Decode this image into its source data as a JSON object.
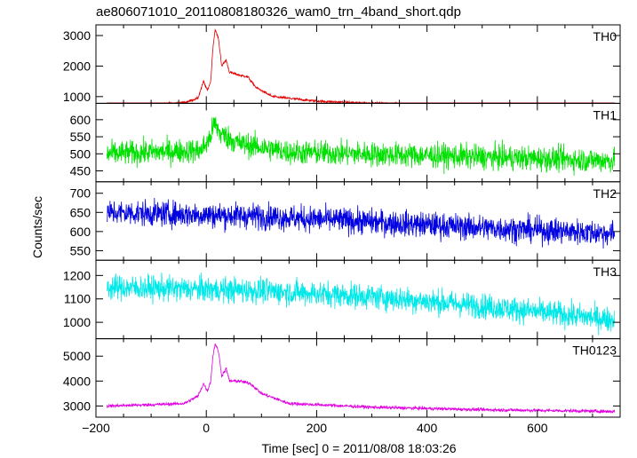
{
  "title": "ae806071010_20110808180326_wam0_trn_4band_short.qdp",
  "xlabel": "Time [sec] 0 = 2011/08/08 18:03:26",
  "ylabel": "Counts/sec",
  "chart_data": {
    "type": "line",
    "title": "ae806071010_20110808180326_wam0_trn_4band_short.qdp",
    "xlabel": "Time [sec] 0 = 2011/08/08 18:03:26",
    "ylabel": "Counts/sec",
    "xlim": [
      -200,
      750
    ],
    "x_ticks": [
      -200,
      0,
      200,
      400,
      600
    ],
    "grid": false,
    "panels": [
      {
        "name": "TH0",
        "color": "#e00000",
        "ylim": [
          780,
          3350
        ],
        "y_ticks": [
          1000,
          2000,
          3000
        ],
        "profile": [
          [
            -180,
            730
          ],
          [
            -100,
            740
          ],
          [
            -40,
            800
          ],
          [
            -15,
            950
          ],
          [
            -5,
            1500
          ],
          [
            2,
            1200
          ],
          [
            8,
            1500
          ],
          [
            12,
            2600
          ],
          [
            16,
            3200
          ],
          [
            22,
            2900
          ],
          [
            28,
            2000
          ],
          [
            36,
            2200
          ],
          [
            42,
            1800
          ],
          [
            60,
            1700
          ],
          [
            75,
            1650
          ],
          [
            90,
            1300
          ],
          [
            120,
            1000
          ],
          [
            200,
            850
          ],
          [
            300,
            780
          ],
          [
            500,
            730
          ],
          [
            740,
            720
          ]
        ],
        "noise": 35
      },
      {
        "name": "TH1",
        "color": "#00e000",
        "ylim": [
          418,
          648
        ],
        "y_ticks": [
          450,
          500,
          550,
          600
        ],
        "profile": [
          [
            -180,
            500
          ],
          [
            -10,
            510
          ],
          [
            5,
            540
          ],
          [
            15,
            590
          ],
          [
            25,
            560
          ],
          [
            60,
            530
          ],
          [
            150,
            505
          ],
          [
            400,
            495
          ],
          [
            740,
            480
          ]
        ],
        "noise": 30
      },
      {
        "name": "TH2",
        "color": "#0000e0",
        "ylim": [
          525,
          730
        ],
        "y_ticks": [
          550,
          600,
          650,
          700
        ],
        "profile": [
          [
            -180,
            650
          ],
          [
            100,
            640
          ],
          [
            300,
            625
          ],
          [
            500,
            610
          ],
          [
            740,
            595
          ]
        ],
        "noise": 28
      },
      {
        "name": "TH3",
        "color": "#00e8e8",
        "ylim": [
          930,
          1265
        ],
        "y_ticks": [
          1000,
          1100,
          1200
        ],
        "profile": [
          [
            -180,
            1150
          ],
          [
            100,
            1135
          ],
          [
            300,
            1110
          ],
          [
            500,
            1070
          ],
          [
            740,
            1010
          ]
        ],
        "noise": 45
      },
      {
        "name": "TH0123",
        "color": "#e000e0",
        "ylim": [
          2550,
          5700
        ],
        "y_ticks": [
          3000,
          4000,
          5000
        ],
        "profile": [
          [
            -180,
            3000
          ],
          [
            -100,
            3050
          ],
          [
            -40,
            3100
          ],
          [
            -15,
            3400
          ],
          [
            -5,
            3900
          ],
          [
            2,
            3600
          ],
          [
            8,
            4000
          ],
          [
            12,
            5000
          ],
          [
            16,
            5500
          ],
          [
            22,
            5200
          ],
          [
            28,
            4200
          ],
          [
            36,
            4500
          ],
          [
            42,
            4000
          ],
          [
            60,
            4000
          ],
          [
            80,
            3900
          ],
          [
            100,
            3500
          ],
          [
            150,
            3100
          ],
          [
            300,
            2950
          ],
          [
            500,
            2850
          ],
          [
            740,
            2780
          ]
        ],
        "noise": 55
      }
    ]
  }
}
